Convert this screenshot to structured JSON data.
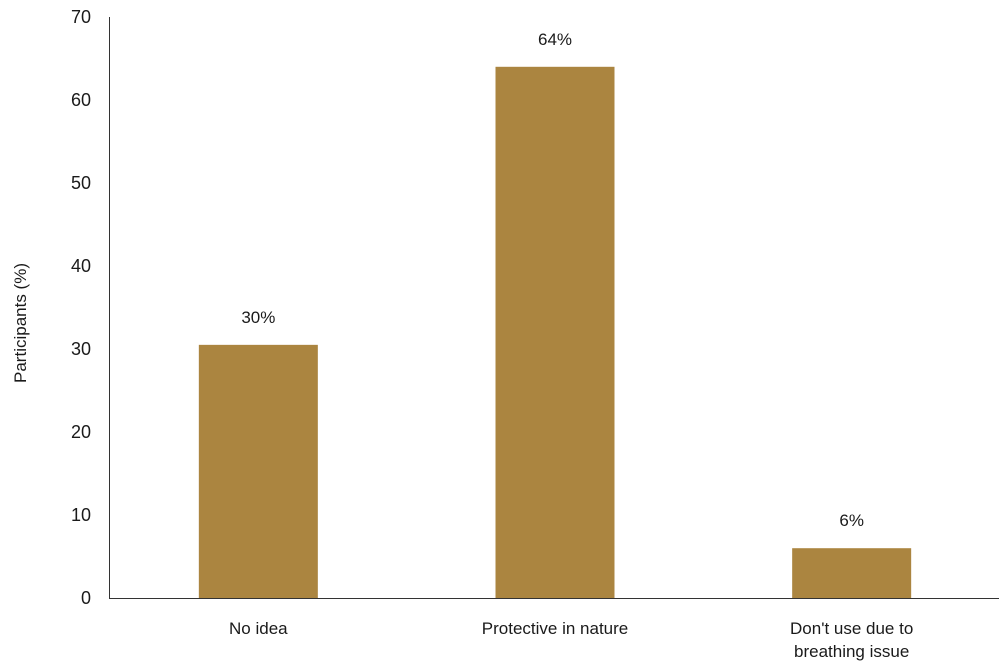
{
  "chart_data": {
    "type": "bar",
    "categories": [
      "No idea",
      "Protective in nature",
      "Don't use due to breathing issue"
    ],
    "category_label_lines": [
      [
        "No idea"
      ],
      [
        "Protective in nature"
      ],
      [
        "Don't use due to",
        "breathing issue"
      ]
    ],
    "values": [
      30.5,
      64,
      6
    ],
    "data_labels": [
      "30%",
      "64%",
      "6%"
    ],
    "title": "",
    "xlabel": "",
    "ylabel": "Participants (%)",
    "ylim": [
      0,
      70
    ],
    "yticks": [
      0,
      10,
      20,
      30,
      40,
      50,
      60,
      70
    ],
    "grid": false,
    "legend": "none",
    "bar_color": "#ab8540"
  }
}
